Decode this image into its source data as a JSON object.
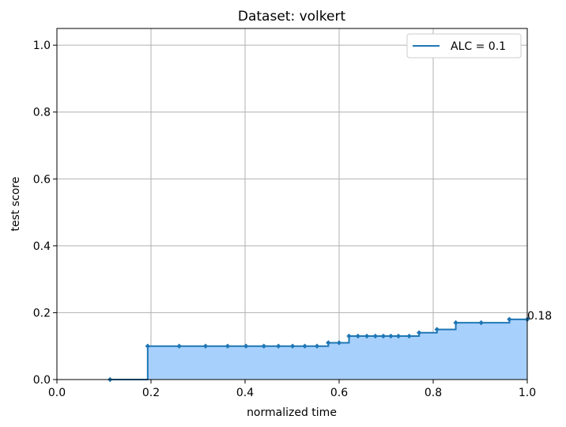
{
  "chart_data": {
    "type": "area",
    "title": "Dataset: volkert",
    "xlabel": "normalized time",
    "ylabel": "test score",
    "xlim": [
      0.0,
      1.0
    ],
    "ylim": [
      0.0,
      1.05
    ],
    "xticks": [
      "0.0",
      "0.2",
      "0.4",
      "0.6",
      "0.8",
      "1.0"
    ],
    "yticks": [
      "0.0",
      "0.2",
      "0.4",
      "0.6",
      "0.8",
      "1.0"
    ],
    "grid": true,
    "legend": {
      "position": "top-right",
      "entries": [
        "ALC = 0.1"
      ]
    },
    "annotation": {
      "text": "0.18",
      "x": 1.0,
      "y": 0.18
    },
    "series": [
      {
        "name": "ALC = 0.1",
        "color": "#1f77b4",
        "fill_color": "#a8d0fd",
        "step": "post",
        "points": [
          [
            0.113,
            0.0
          ],
          [
            0.193,
            0.1
          ],
          [
            0.26,
            0.1
          ],
          [
            0.316,
            0.1
          ],
          [
            0.363,
            0.1
          ],
          [
            0.402,
            0.1
          ],
          [
            0.44,
            0.1
          ],
          [
            0.471,
            0.1
          ],
          [
            0.501,
            0.1
          ],
          [
            0.527,
            0.1
          ],
          [
            0.553,
            0.1
          ],
          [
            0.577,
            0.11
          ],
          [
            0.6,
            0.11
          ],
          [
            0.621,
            0.13
          ],
          [
            0.64,
            0.13
          ],
          [
            0.659,
            0.13
          ],
          [
            0.677,
            0.13
          ],
          [
            0.694,
            0.13
          ],
          [
            0.71,
            0.13
          ],
          [
            0.726,
            0.13
          ],
          [
            0.749,
            0.13
          ],
          [
            0.77,
            0.14
          ],
          [
            0.808,
            0.15
          ],
          [
            0.848,
            0.17
          ],
          [
            0.902,
            0.17
          ],
          [
            0.962,
            0.18
          ],
          [
            1.0,
            0.18
          ]
        ]
      }
    ]
  }
}
